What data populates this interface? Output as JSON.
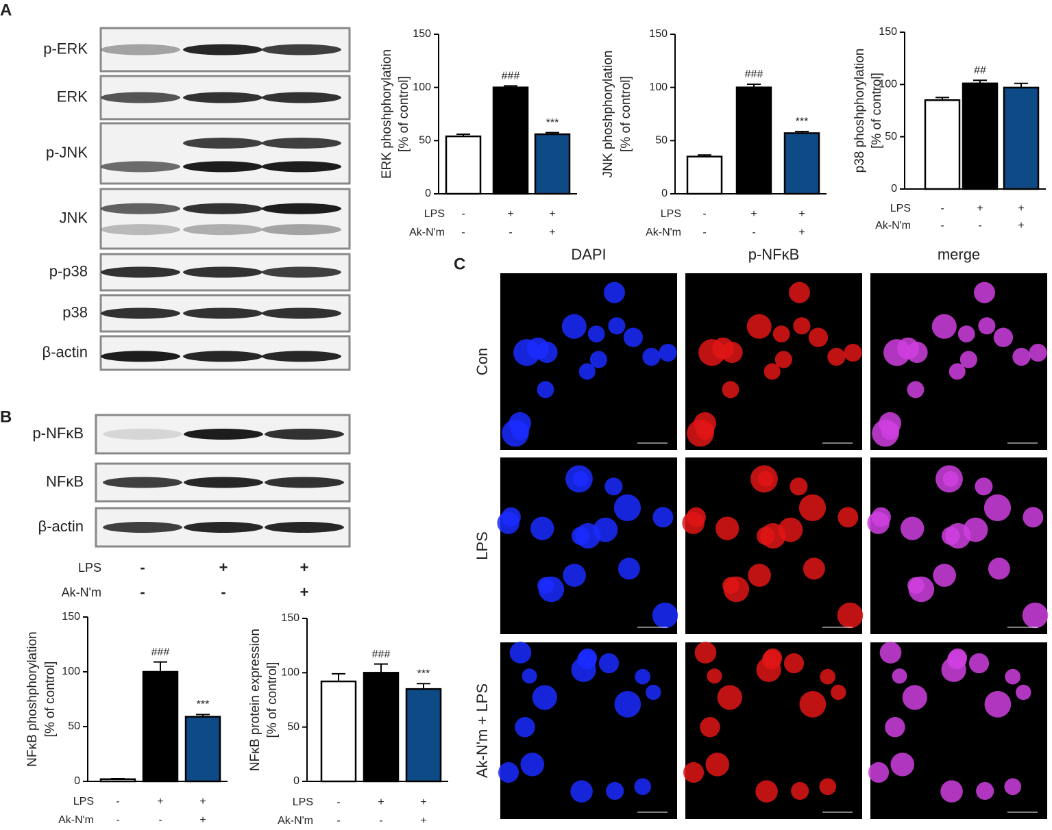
{
  "panel_labels": [
    "A",
    "B",
    "C"
  ],
  "blot_a": {
    "rows": [
      "p-ERK",
      "ERK",
      "p-JNK",
      "JNK",
      "p-p38",
      "p38",
      "β-actin"
    ]
  },
  "blot_b": {
    "rows": [
      "p-NFκB",
      "NFκB",
      "β-actin"
    ],
    "conditions": [
      {
        "name": "LPS",
        "values": [
          "-",
          "+",
          "+"
        ]
      },
      {
        "name": "Ak-N'm",
        "values": [
          "-",
          "-",
          "+"
        ]
      }
    ]
  },
  "microscopy": {
    "columns": [
      "DAPI",
      "p-NFκB",
      "merge"
    ],
    "rows": [
      "Con",
      "LPS",
      "Ak-N'm + LPS"
    ]
  },
  "chart_data": [
    {
      "type": "bar",
      "ylabel": [
        "ERK phoshphorylation",
        "[% of control]"
      ],
      "values": [
        54,
        100,
        56
      ],
      "errors": [
        2,
        1.5,
        1.5
      ],
      "annotations": [
        null,
        "###",
        "***"
      ],
      "colors": [
        "#ffffff",
        "#000000",
        "#0e4a86"
      ],
      "ylim": [
        0,
        150
      ],
      "yticks": [
        0,
        50,
        100,
        150
      ],
      "conditions": [
        {
          "name": "LPS",
          "values": [
            "-",
            "+",
            "+"
          ]
        },
        {
          "name": "Ak-N'm",
          "values": [
            "-",
            "-",
            "+"
          ]
        }
      ]
    },
    {
      "type": "bar",
      "ylabel": [
        "JNK phoshphorylation",
        "[% of control]"
      ],
      "values": [
        35,
        100,
        57
      ],
      "errors": [
        1.5,
        3,
        1.5
      ],
      "annotations": [
        null,
        "###",
        "***"
      ],
      "colors": [
        "#ffffff",
        "#000000",
        "#0e4a86"
      ],
      "ylim": [
        0,
        150
      ],
      "yticks": [
        0,
        50,
        100,
        150
      ],
      "conditions": [
        {
          "name": "LPS",
          "values": [
            "-",
            "+",
            "+"
          ]
        },
        {
          "name": "Ak-N'm",
          "values": [
            "-",
            "-",
            "+"
          ]
        }
      ]
    },
    {
      "type": "bar",
      "ylabel": [
        "p38 phoshphorylation",
        "[% of control]"
      ],
      "values": [
        85,
        101,
        97
      ],
      "errors": [
        2.5,
        3,
        4
      ],
      "annotations": [
        null,
        "##",
        null
      ],
      "colors": [
        "#ffffff",
        "#000000",
        "#0e4a86"
      ],
      "ylim": [
        0,
        150
      ],
      "yticks": [
        0,
        50,
        100,
        150
      ],
      "conditions": [
        {
          "name": "LPS",
          "values": [
            "-",
            "+",
            "+"
          ]
        },
        {
          "name": "Ak-N'm",
          "values": [
            "-",
            "-",
            "+"
          ]
        }
      ]
    },
    {
      "type": "bar",
      "ylabel": [
        "NFκB phoshphorylation",
        "[% of control]"
      ],
      "values": [
        2,
        100,
        59
      ],
      "errors": [
        0.5,
        9,
        2
      ],
      "annotations": [
        null,
        "###",
        "***"
      ],
      "colors": [
        "#ffffff",
        "#000000",
        "#0e4a86"
      ],
      "ylim": [
        0,
        150
      ],
      "yticks": [
        0,
        50,
        100,
        150
      ],
      "conditions": [
        {
          "name": "LPS",
          "values": [
            "-",
            "+",
            "+"
          ]
        },
        {
          "name": "Ak-N'm",
          "values": [
            "-",
            "-",
            "+"
          ]
        }
      ]
    },
    {
      "type": "bar",
      "ylabel": [
        "NFκB protein expression",
        "[% of control]"
      ],
      "values": [
        92,
        100,
        85
      ],
      "errors": [
        7,
        8,
        5
      ],
      "annotations": [
        null,
        "###",
        "***"
      ],
      "colors": [
        "#ffffff",
        "#000000",
        "#0e4a86"
      ],
      "ylim": [
        0,
        150
      ],
      "yticks": [
        0,
        50,
        100,
        150
      ],
      "conditions": [
        {
          "name": "LPS",
          "values": [
            "-",
            "+",
            "+"
          ]
        },
        {
          "name": "Ak-N'm",
          "values": [
            "-",
            "-",
            "+"
          ]
        }
      ]
    }
  ]
}
